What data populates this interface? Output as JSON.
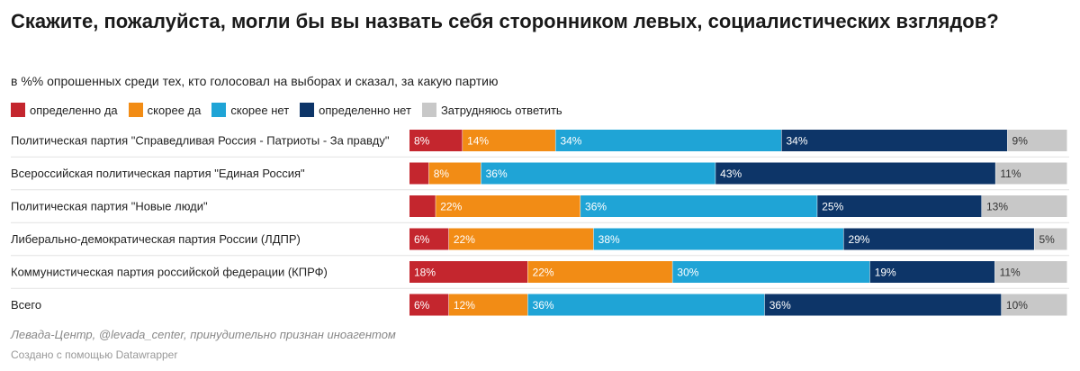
{
  "header": {
    "title": "Скажите, пожалуйста, могли бы вы назвать себя сторонником левых, социалистических взглядов?",
    "subtitle": "в %% опрошенных среди тех, кто голосовал на выборах и сказал, за какую партию"
  },
  "footer": {
    "source": "Левада-Центр, @levada_center, принудительно признан иноагентом",
    "credit": "Создано с помощью Datawrapper"
  },
  "chart_data": {
    "type": "bar",
    "orientation": "horizontal-stacked-100",
    "title": "Скажите, пожалуйста, могли бы вы назвать себя сторонником левых, социалистических взглядов?",
    "subtitle": "в %% опрошенных среди тех, кто голосовал на выборах и сказал, за какую партию",
    "legend_position": "top-left",
    "value_suffix": "%",
    "categories": [
      "Политическая партия \"Справедливая Россия - Патриоты - За правду\"",
      "Всероссийская политическая партия \"Единая Россия\"",
      "Политическая партия \"Новые люди\"",
      "Либерально-демократическая партия России (ЛДПР)",
      "Коммунистическая партия российской федерации (КПРФ)",
      "Всего"
    ],
    "series": [
      {
        "name": "определенно да",
        "color": "#c4262e",
        "values": [
          8,
          3,
          4,
          6,
          18,
          6
        ],
        "labels": [
          "8%",
          "",
          "",
          "6%",
          "18%",
          "6%"
        ]
      },
      {
        "name": "скорее да",
        "color": "#f28c15",
        "values": [
          14,
          8,
          22,
          22,
          22,
          12
        ],
        "labels": [
          "14%",
          "8%",
          "22%",
          "22%",
          "22%",
          "12%"
        ]
      },
      {
        "name": "скорее нет",
        "color": "#1fa4d6",
        "values": [
          34,
          36,
          36,
          38,
          30,
          36
        ],
        "labels": [
          "34%",
          "36%",
          "36%",
          "38%",
          "30%",
          "36%"
        ]
      },
      {
        "name": "определенно нет",
        "color": "#0d3568",
        "values": [
          34,
          43,
          25,
          29,
          19,
          36
        ],
        "labels": [
          "34%",
          "43%",
          "25%",
          "29%",
          "19%",
          "36%"
        ]
      },
      {
        "name": "Затрудняюсь ответить",
        "color": "#c8c8c8",
        "values": [
          9,
          11,
          13,
          5,
          11,
          10
        ],
        "labels": [
          "9%",
          "11%",
          "13%",
          "5%",
          "11%",
          "10%"
        ]
      }
    ]
  }
}
